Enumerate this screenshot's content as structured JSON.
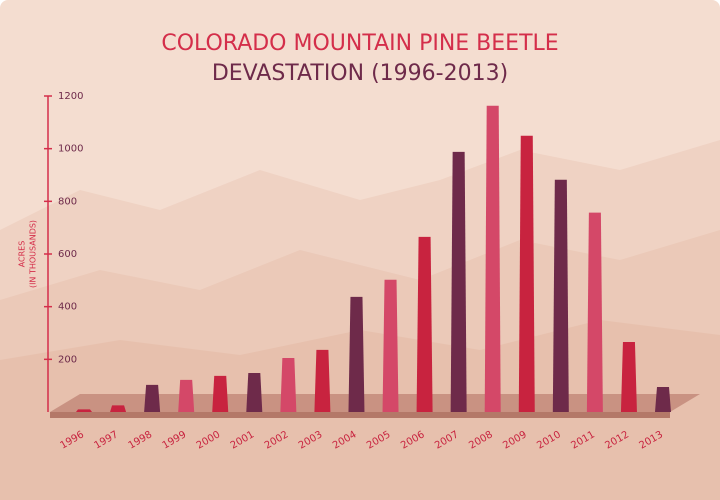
{
  "chart_data": {
    "type": "bar",
    "title": "COLORADO MOUNTAIN PINE BEETLE",
    "subtitle": "DEVASTATION (1996-2013)",
    "ylabel": [
      "ACRES",
      "(IN THOUSANDS)"
    ],
    "categories": [
      "1996",
      "1997",
      "1998",
      "1999",
      "2000",
      "2001",
      "2002",
      "2003",
      "2004",
      "2005",
      "2006",
      "2007",
      "2008",
      "2009",
      "2010",
      "2011",
      "2012",
      "2013"
    ],
    "values": [
      10,
      25,
      103,
      122,
      137,
      148,
      205,
      236,
      437,
      502,
      665,
      988,
      1163,
      1049,
      882,
      757,
      266,
      95
    ],
    "colors": [
      "#c8233f",
      "#c8233f",
      "#6e2a4a",
      "#d44868",
      "#c8233f",
      "#6e2a4a",
      "#d44868",
      "#c8233f",
      "#6e2a4a",
      "#d44868",
      "#c8233f",
      "#6e2a4a",
      "#d44868",
      "#c8233f",
      "#6e2a4a",
      "#d44868",
      "#c8233f",
      "#6e2a4a"
    ],
    "ylim": [
      0,
      1200
    ],
    "yticks": [
      200,
      400,
      600,
      800,
      1000,
      1200
    ]
  }
}
